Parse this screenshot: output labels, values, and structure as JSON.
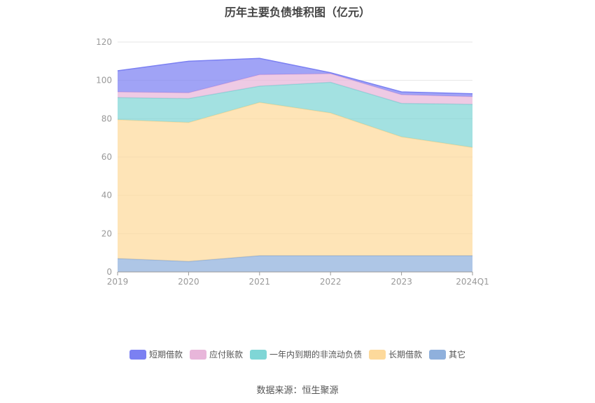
{
  "chart_data": {
    "type": "area",
    "stacked": true,
    "title": "历年主要负债堆积图（亿元）",
    "categories": [
      "2019",
      "2020",
      "2021",
      "2022",
      "2023",
      "2024Q1"
    ],
    "ylim": [
      0,
      120
    ],
    "yticks": [
      0,
      20,
      40,
      60,
      80,
      100,
      120
    ],
    "grid": true,
    "legend_position": "bottom",
    "series": [
      {
        "name": "其它",
        "color": "#8fb0dc",
        "values": [
          7,
          5.5,
          8.5,
          8.5,
          8.5,
          8.5
        ]
      },
      {
        "name": "长期借款",
        "color": "#fdd99b",
        "values": [
          72.5,
          72.5,
          80,
          74.5,
          62,
          56.5
        ]
      },
      {
        "name": "一年内到期的非流动负债",
        "color": "#7fd6d6",
        "values": [
          11.5,
          12.5,
          8.5,
          16,
          17.5,
          22.5
        ]
      },
      {
        "name": "应付账款",
        "color": "#e8b6da",
        "values": [
          3,
          3,
          6,
          4.5,
          4.5,
          4
        ]
      },
      {
        "name": "短期借款",
        "color": "#7b80f2",
        "values": [
          11,
          16.5,
          8.5,
          0.5,
          1.5,
          1.5
        ]
      }
    ],
    "source": "数据来源：恒生聚源"
  }
}
